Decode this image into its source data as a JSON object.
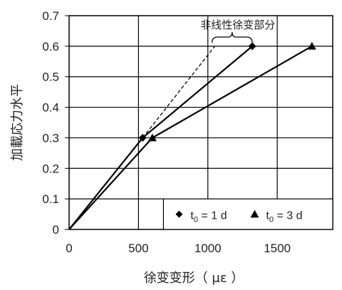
{
  "chart_data": {
    "type": "line",
    "xlabel": "徐变变形（ με ）",
    "ylabel": "加載応力水平",
    "xlim": [
      0,
      1900
    ],
    "ylim": [
      0,
      0.7
    ],
    "xticks": [
      0,
      500,
      1000,
      1500
    ],
    "yticks": [
      0,
      0.1,
      0.2,
      0.3,
      0.4,
      0.5,
      0.6,
      0.7
    ],
    "grid": "horizontal",
    "legend": {
      "position": "bottom-right"
    },
    "series": [
      {
        "name": "t0 = 1 d",
        "legend_main": "t",
        "legend_sub": "0",
        "legend_rest": " = 1 d",
        "marker": "diamond",
        "x": [
          0,
          530,
          1320
        ],
        "y": [
          0,
          0.3,
          0.6
        ]
      },
      {
        "name": "t0 = 3 d",
        "legend_main": "t",
        "legend_sub": "0",
        "legend_rest": " = 3 d",
        "marker": "triangle",
        "x": [
          0,
          600,
          1750
        ],
        "y": [
          0,
          0.3,
          0.6
        ]
      }
    ],
    "dashed_extension": {
      "x": [
        530,
        1050
      ],
      "y": [
        0.3,
        0.6
      ]
    },
    "annotation": "非线性徐变部分"
  }
}
